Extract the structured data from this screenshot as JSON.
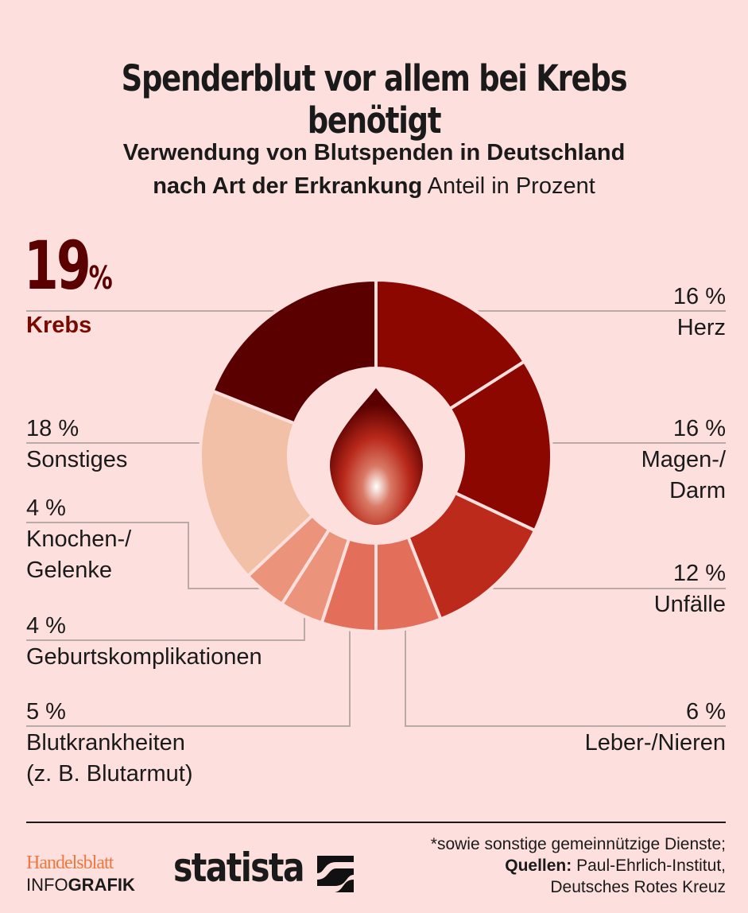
{
  "title": "Spenderblut vor allem bei Krebs benötigt",
  "subtitle_line1": "Verwendung von Blutspenden in Deutschland",
  "subtitle_line2_bold": "nach Art der Erkrankung",
  "subtitle_line2_rest": " Anteil in Prozent",
  "chart_data": {
    "type": "pie",
    "donut": true,
    "unit": "%",
    "slices": [
      {
        "label": "Herz",
        "value": 16,
        "color": "#8c0700"
      },
      {
        "label": "Magen-/ Darm",
        "value": 16,
        "color": "#8c0700"
      },
      {
        "label": "Unfälle",
        "value": 12,
        "color": "#bb2a1a"
      },
      {
        "label": "Leber-/Nieren",
        "value": 6,
        "color": "#e36e5a"
      },
      {
        "label": "Blutkrankheiten (z. B. Blutarmut)",
        "value": 5,
        "color": "#e36e5a"
      },
      {
        "label": "Geburtskomplikationen",
        "value": 4,
        "color": "#ec937b"
      },
      {
        "label": "Knochen-/ Gelenke",
        "value": 4,
        "color": "#ec937b"
      },
      {
        "label": "Sonstiges",
        "value": 18,
        "color": "#f2c0a6"
      },
      {
        "label": "Krebs",
        "value": 19,
        "color": "#5a0000"
      }
    ]
  },
  "labels": {
    "krebs_value": "19",
    "krebs_pct": "%",
    "krebs": "Krebs",
    "herz_value": "16 %",
    "herz": "Herz",
    "magen_value": "16 %",
    "magen1": "Magen-/",
    "magen2": "Darm",
    "unfaelle_value": "12 %",
    "unfaelle": "Unfälle",
    "leber_value": "6 %",
    "leber": "Leber-/Nieren",
    "sonst_value": "18 %",
    "sonst": "Sonstiges",
    "knochen_value": "4 %",
    "knochen1": "Knochen-/",
    "knochen2": "Gelenke",
    "geburt_value": "4 %",
    "geburt": "Geburtskomplikationen",
    "blut_value": "5 %",
    "blut1": "Blutkrankheiten",
    "blut2": "(z. B. Blutarmut)"
  },
  "footer": {
    "note": "*sowie sonstige gemeinnützige Dienste;",
    "sources_label": "Quellen:",
    "sources1": " Paul-Ehrlich-Institut,",
    "sources2": "Deutsches Rotes Kreuz",
    "brand1": "Handelsblatt",
    "brand2a": "INFO",
    "brand2b": "GRAFIK",
    "statista": "statista"
  }
}
